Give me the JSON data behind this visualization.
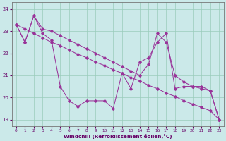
{
  "bg_color": "#cbe9e9",
  "line_color": "#993399",
  "grid_color": "#99ccbb",
  "xlabel": "Windchill (Refroidissement éolien,°C)",
  "xlim": [
    -0.5,
    23.5
  ],
  "ylim": [
    18.7,
    24.3
  ],
  "yticks": [
    19,
    20,
    21,
    22,
    23,
    24
  ],
  "xticks": [
    0,
    1,
    2,
    3,
    4,
    5,
    6,
    7,
    8,
    9,
    10,
    11,
    12,
    13,
    14,
    15,
    16,
    17,
    18,
    19,
    20,
    21,
    22,
    23
  ],
  "line_a_x": [
    0,
    1,
    2,
    3,
    4,
    5,
    6,
    7,
    8,
    9,
    10,
    11,
    12,
    13,
    14,
    15,
    16,
    17,
    18,
    19,
    20,
    21,
    22,
    23
  ],
  "line_a_y": [
    23.3,
    23.1,
    22.9,
    22.7,
    22.5,
    22.35,
    22.15,
    21.95,
    21.8,
    21.6,
    21.45,
    21.25,
    21.1,
    20.9,
    20.75,
    20.55,
    20.4,
    20.2,
    20.05,
    19.85,
    19.7,
    19.55,
    19.4,
    19.0
  ],
  "line_b_x": [
    0,
    1,
    2,
    3,
    4,
    5,
    6,
    7,
    8,
    9,
    10,
    11,
    12,
    13,
    14,
    15,
    16,
    17,
    18,
    19,
    20,
    21,
    22,
    23
  ],
  "line_b_y": [
    23.3,
    22.5,
    23.7,
    22.9,
    22.6,
    20.5,
    19.85,
    19.6,
    19.85,
    19.85,
    19.85,
    19.5,
    21.1,
    20.4,
    21.6,
    21.8,
    22.5,
    22.9,
    20.4,
    20.5,
    20.5,
    20.4,
    20.3,
    19.0
  ],
  "line_c_x": [
    0,
    1,
    2,
    3,
    4,
    5,
    6,
    7,
    8,
    9,
    10,
    11,
    12,
    13,
    14,
    15,
    16,
    17,
    18,
    19,
    20,
    21,
    22,
    23
  ],
  "line_c_y": [
    23.3,
    22.5,
    23.7,
    23.1,
    23.0,
    22.8,
    22.6,
    22.4,
    22.2,
    22.0,
    21.8,
    21.6,
    21.4,
    21.2,
    21.0,
    21.5,
    22.9,
    22.5,
    21.0,
    20.7,
    20.5,
    20.5,
    20.3,
    19.0
  ]
}
